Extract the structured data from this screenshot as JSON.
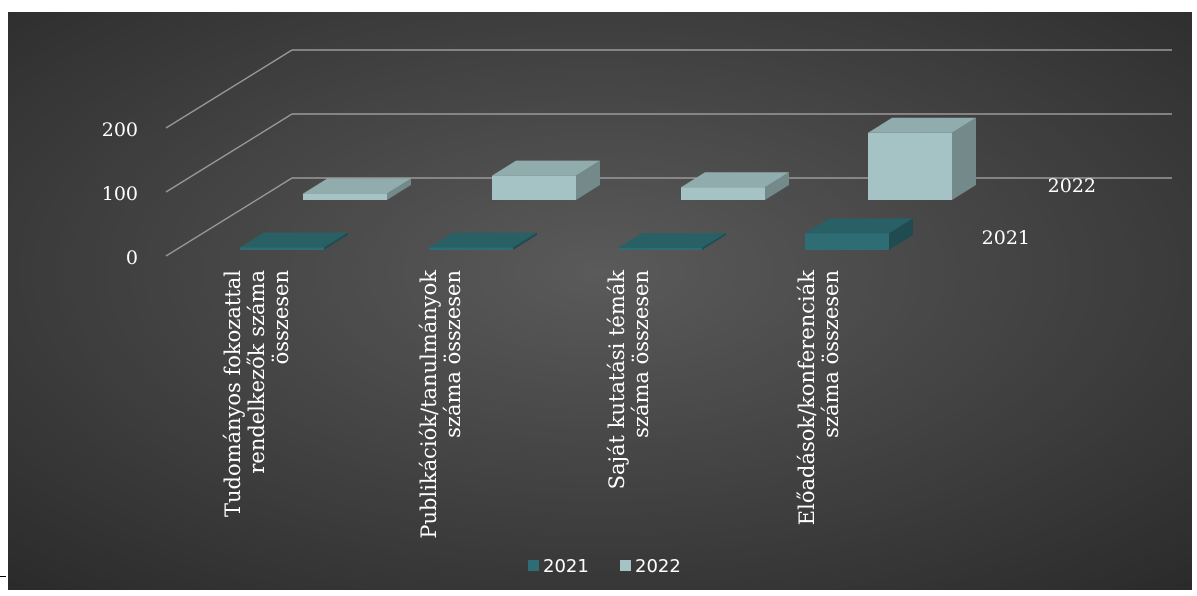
{
  "chart_data": {
    "type": "bar",
    "projection": "3d-depth",
    "categories": [
      [
        "Tudományos fokozattal",
        "rendelkezők száma",
        "összesen"
      ],
      [
        "Publikációk/tanulmányok",
        "száma összesen"
      ],
      [
        "Saját kutatási témák",
        "száma összesen"
      ],
      [
        "Előadások/konferenciák",
        "száma összesen"
      ]
    ],
    "series": [
      {
        "name": "2021",
        "values": [
          4,
          4,
          2,
          26
        ],
        "color": "#2e6d73"
      },
      {
        "name": "2022",
        "values": [
          10,
          38,
          20,
          105
        ],
        "color": "#a5c3c5"
      }
    ],
    "yticks": [
      "0",
      "100",
      "200"
    ],
    "ylim": [
      0,
      300
    ],
    "grid": true,
    "legend": "bottom",
    "background": [
      "#5a5a5a",
      "#2a2a2a"
    ]
  }
}
